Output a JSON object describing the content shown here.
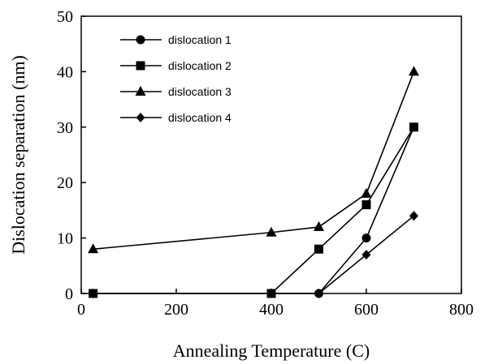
{
  "chart_data": {
    "type": "line",
    "xlabel": "Annealing Temperature (C)",
    "ylabel": "Dislocation separation (nm)",
    "xlim": [
      0,
      800
    ],
    "ylim": [
      0,
      50
    ],
    "xticks": [
      0,
      200,
      400,
      600,
      800
    ],
    "yticks": [
      0,
      10,
      20,
      30,
      40,
      50
    ],
    "grid": false,
    "legend_position": "top-left",
    "series": [
      {
        "name": "dislocation 1",
        "marker": "circle",
        "x": [
          25,
          400,
          500,
          600,
          700
        ],
        "y": [
          0,
          0,
          0,
          10,
          30
        ]
      },
      {
        "name": "dislocation 2",
        "marker": "square",
        "x": [
          25,
          400,
          500,
          600,
          700
        ],
        "y": [
          0,
          0,
          8,
          16,
          30
        ]
      },
      {
        "name": "dislocation 3",
        "marker": "triangle",
        "x": [
          25,
          400,
          500,
          600,
          700
        ],
        "y": [
          8,
          11,
          12,
          18,
          40
        ]
      },
      {
        "name": "dislocation 4",
        "marker": "diamond",
        "x": [
          25,
          400,
          500,
          600,
          700
        ],
        "y": [
          0,
          0,
          0,
          7,
          14
        ]
      }
    ]
  }
}
